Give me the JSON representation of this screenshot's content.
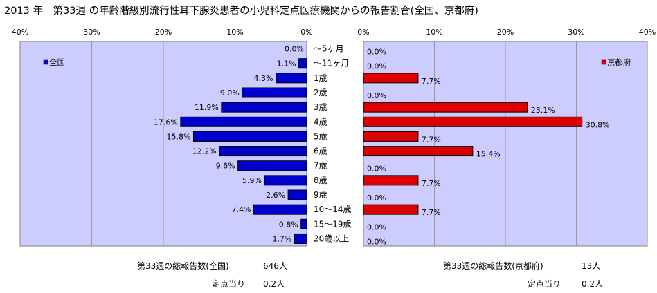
{
  "title": "2013 年　第33週 の年齢階級別流行性耳下腺炎患者の小児科定点医療機関からの報告割合(全国、京都府)",
  "colors": {
    "plot_bg": "#ccccff",
    "national_bar": "#0000cc",
    "kyoto_bar": "#dd0000",
    "grid": "#999999"
  },
  "chart_data": [
    {
      "type": "bar",
      "orientation": "horizontal",
      "direction": "right-to-left",
      "legend": "全国",
      "legend_position": "top-left",
      "xlim": [
        0,
        40
      ],
      "x_ticks": [
        "40%",
        "30%",
        "20%",
        "10%",
        "0%"
      ],
      "grid": true,
      "categories": [
        "～5ヶ月",
        "～11ヶ月",
        "1歳",
        "2歳",
        "3歳",
        "4歳",
        "5歳",
        "6歳",
        "7歳",
        "8歳",
        "9歳",
        "10～14歳",
        "15～19歳",
        "20歳以上"
      ],
      "values": [
        0.0,
        1.1,
        4.3,
        9.0,
        11.9,
        17.6,
        15.8,
        12.2,
        9.6,
        5.9,
        2.6,
        7.4,
        0.8,
        1.7
      ],
      "labels": [
        "0.0%",
        "1.1%",
        "4.3%",
        "9.0%",
        "11.9%",
        "17.6%",
        "15.8%",
        "12.2%",
        "9.6%",
        "5.9%",
        "2.6%",
        "7.4%",
        "0.8%",
        "1.7%"
      ]
    },
    {
      "type": "bar",
      "orientation": "horizontal",
      "direction": "left-to-right",
      "legend": "京都府",
      "legend_position": "top-right",
      "xlim": [
        0,
        40
      ],
      "x_ticks": [
        "0%",
        "10%",
        "20%",
        "30%",
        "40%"
      ],
      "grid": true,
      "categories": [
        "～5ヶ月",
        "～11ヶ月",
        "1歳",
        "2歳",
        "3歳",
        "4歳",
        "5歳",
        "6歳",
        "7歳",
        "8歳",
        "9歳",
        "10～14歳",
        "15～19歳",
        "20歳以上"
      ],
      "values": [
        0.0,
        0.0,
        7.7,
        0.0,
        23.1,
        30.8,
        7.7,
        15.4,
        0.0,
        7.7,
        0.0,
        7.7,
        0.0,
        0.0
      ],
      "labels": [
        "0.0%",
        "0.0%",
        "7.7%",
        "0.0%",
        "23.1%",
        "30.8%",
        "7.7%",
        "15.4%",
        "0.0%",
        "7.7%",
        "0.0%",
        "7.7%",
        "0.0%",
        "0.0%"
      ]
    }
  ],
  "footer": {
    "national_total_label": "第33週の総報告数(全国)",
    "national_total_value": "646人",
    "national_per_label": "定点当り",
    "national_per_value": "0.2人",
    "kyoto_total_label": "第33週の総報告数(京都府)",
    "kyoto_total_value": "13人",
    "kyoto_per_label": "定点当り",
    "kyoto_per_value": "0.2人"
  }
}
